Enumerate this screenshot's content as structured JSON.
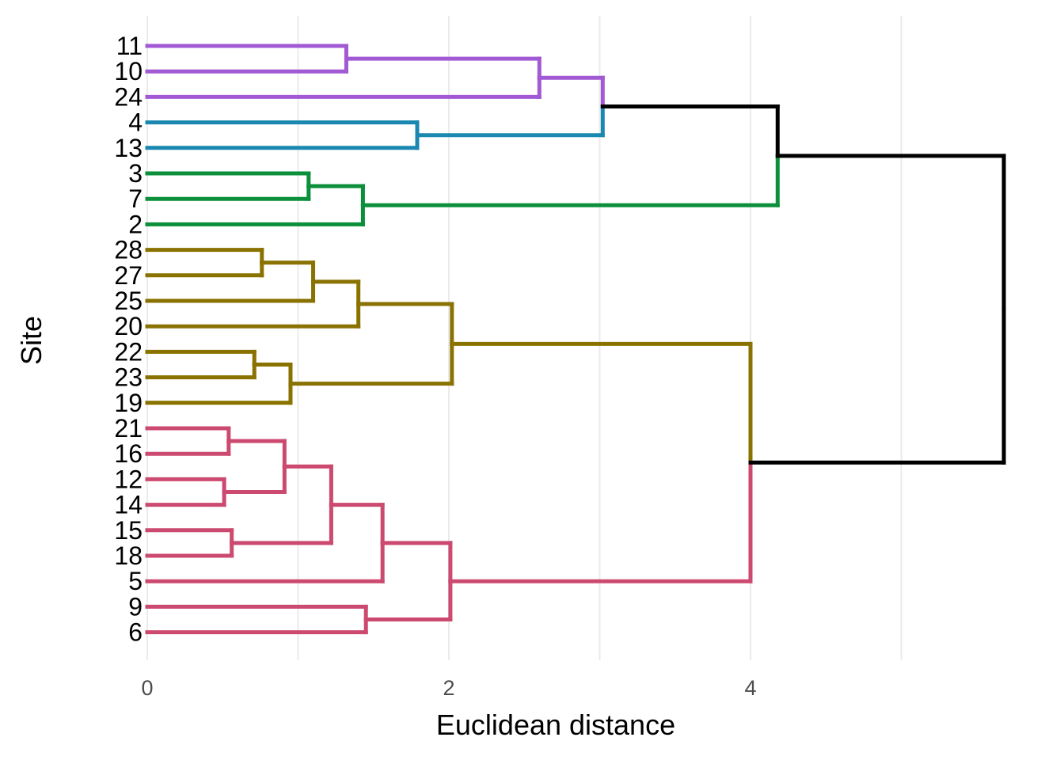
{
  "chart_data": {
    "type": "dendrogram",
    "title": "",
    "xlabel": "Euclidean distance",
    "ylabel": "Site",
    "xlim": [
      0,
      5.85
    ],
    "x_ticks": [
      0,
      2,
      4
    ],
    "x_tick_labels": [
      "0",
      "2",
      "4"
    ],
    "minor_grid": [
      1,
      3,
      5
    ],
    "grid": true,
    "leaves": [
      "11",
      "10",
      "24",
      "4",
      "13",
      "3",
      "7",
      "2",
      "28",
      "27",
      "25",
      "20",
      "22",
      "23",
      "19",
      "21",
      "16",
      "12",
      "14",
      "15",
      "18",
      "5",
      "9",
      "6"
    ],
    "cluster_colors": {
      "purple": "#A259D4",
      "blue": "#1A88B0",
      "green": "#0B8F3A",
      "olive": "#8A7200",
      "pink": "#CC4A70",
      "root": "#000000"
    },
    "merges": [
      {
        "id": "n1",
        "children": [
          "11",
          "10"
        ],
        "height": 1.32,
        "color": "purple"
      },
      {
        "id": "n2",
        "children": [
          "n1",
          "24"
        ],
        "height": 2.6,
        "color": "purple"
      },
      {
        "id": "n3",
        "children": [
          "4",
          "13"
        ],
        "height": 1.79,
        "color": "blue"
      },
      {
        "id": "n4",
        "children": [
          "n2",
          "n3"
        ],
        "height": 3.02,
        "color": "root"
      },
      {
        "id": "n5",
        "children": [
          "3",
          "7"
        ],
        "height": 1.07,
        "color": "green"
      },
      {
        "id": "n6",
        "children": [
          "n5",
          "2"
        ],
        "height": 1.43,
        "color": "green"
      },
      {
        "id": "n7",
        "children": [
          "n4",
          "n6"
        ],
        "height": 4.18,
        "color": "root"
      },
      {
        "id": "n8",
        "children": [
          "28",
          "27"
        ],
        "height": 0.76,
        "color": "olive"
      },
      {
        "id": "n9",
        "children": [
          "n8",
          "25"
        ],
        "height": 1.1,
        "color": "olive"
      },
      {
        "id": "n10",
        "children": [
          "n9",
          "20"
        ],
        "height": 1.4,
        "color": "olive"
      },
      {
        "id": "n11",
        "children": [
          "22",
          "23"
        ],
        "height": 0.71,
        "color": "olive"
      },
      {
        "id": "n12",
        "children": [
          "n11",
          "19"
        ],
        "height": 0.95,
        "color": "olive"
      },
      {
        "id": "n13",
        "children": [
          "n10",
          "n12"
        ],
        "height": 2.02,
        "color": "olive"
      },
      {
        "id": "n14",
        "children": [
          "21",
          "16"
        ],
        "height": 0.54,
        "color": "pink"
      },
      {
        "id": "n15",
        "children": [
          "12",
          "14"
        ],
        "height": 0.51,
        "color": "pink"
      },
      {
        "id": "n16",
        "children": [
          "n14",
          "n15"
        ],
        "height": 0.91,
        "color": "pink"
      },
      {
        "id": "n17",
        "children": [
          "15",
          "18"
        ],
        "height": 0.56,
        "color": "pink"
      },
      {
        "id": "n18",
        "children": [
          "n16",
          "n17"
        ],
        "height": 1.22,
        "color": "pink"
      },
      {
        "id": "n19",
        "children": [
          "n18",
          "5"
        ],
        "height": 1.56,
        "color": "pink"
      },
      {
        "id": "n20",
        "children": [
          "9",
          "6"
        ],
        "height": 1.45,
        "color": "pink"
      },
      {
        "id": "n21",
        "children": [
          "n19",
          "n20"
        ],
        "height": 2.01,
        "color": "pink"
      },
      {
        "id": "n22",
        "children": [
          "n13",
          "n21"
        ],
        "height": 4.0,
        "color": "olive-pink"
      },
      {
        "id": "n23",
        "children": [
          "n7",
          "n22"
        ],
        "height": 5.68,
        "color": "root"
      }
    ]
  }
}
